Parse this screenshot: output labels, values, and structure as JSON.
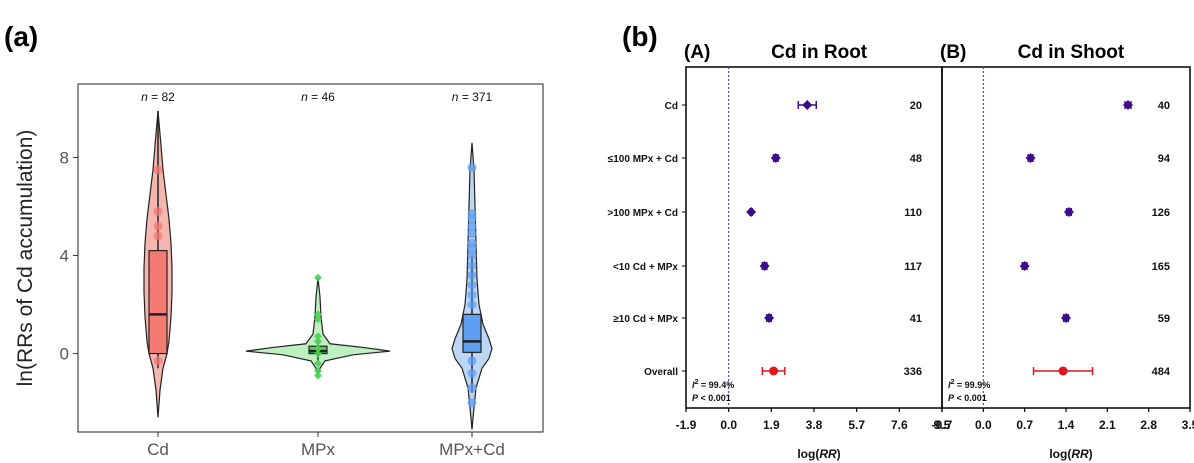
{
  "panel_labels": {
    "a": "(a)",
    "b": "(b)"
  },
  "chart_data": [
    {
      "type": "violin-box",
      "ylabel": "ln(RRs of Cd accumulation)",
      "xlabel": "",
      "categories": [
        "Cd",
        "MPx",
        "MPx+Cd"
      ],
      "n_labels": [
        {
          "prefix": "n",
          "value": "= 82"
        },
        {
          "prefix": "n",
          "value": "= 46"
        },
        {
          "prefix": "n",
          "value": "= 371"
        }
      ],
      "ylim": [
        -3.2,
        11
      ],
      "yticks": [
        "0",
        "4",
        "8"
      ],
      "ytick_values": [
        0,
        4,
        8
      ],
      "grid": false,
      "colors": [
        "#f47a72",
        "#4ccf55",
        "#5f9ff2"
      ],
      "violin_fill": [
        "#f4a9a2",
        "#b3ecb5",
        "#b0cff4"
      ],
      "groups": [
        {
          "name": "Cd",
          "box": {
            "q1": 0.0,
            "median": 1.6,
            "q3": 4.2,
            "whisker_low": -0.6,
            "whisker_high": 9.9
          },
          "violin_min": -2.6,
          "violin_max": 9.9,
          "points": [
            7.5,
            5.8,
            5.2,
            4.8,
            4.0,
            3.0,
            2.0,
            1.0,
            0.2,
            -0.3
          ]
        },
        {
          "name": "MPx",
          "box": {
            "q1": 0.0,
            "median": 0.1,
            "q3": 0.3,
            "whisker_low": -0.3,
            "whisker_high": 0.5
          },
          "violin_min": -0.9,
          "violin_max": 3.1,
          "points": [
            3.1,
            1.6,
            1.4,
            0.7,
            0.5,
            0.2,
            0.0,
            -0.4,
            -0.7,
            -0.9
          ]
        },
        {
          "name": "MPx+Cd",
          "box": {
            "q1": 0.05,
            "median": 0.5,
            "q3": 1.6,
            "whisker_low": -1.6,
            "whisker_high": 4.0
          },
          "violin_min": -3.1,
          "violin_max": 8.6,
          "points": [
            7.6,
            5.7,
            5.5,
            5.2,
            4.9,
            4.5,
            4.3,
            4.0,
            3.6,
            3.2,
            2.8,
            2.4,
            2.0,
            -0.3,
            -0.8,
            -1.4,
            -2.0
          ]
        }
      ]
    },
    {
      "type": "forest",
      "title": "Cd in Root",
      "panel": "(A)",
      "xlabel": "log(RR)",
      "xticks": [
        "-1.9",
        "0.0",
        "1.9",
        "3.8",
        "5.7",
        "7.6",
        "9.5"
      ],
      "xtick_values": [
        -1.9,
        0.0,
        1.9,
        3.8,
        5.7,
        7.6,
        9.5
      ],
      "xlim": [
        -1.9,
        9.5
      ],
      "reference_line": 0,
      "categories": [
        "Cd",
        "≤100 MPx + Cd",
        ">100 MPx + Cd",
        "<10 Cd + MPx",
        "≥10 Cd + MPx",
        "Overall"
      ],
      "estimates": [
        3.5,
        2.1,
        1.0,
        1.6,
        1.8,
        2.0
      ],
      "ci_low": [
        3.1,
        2.0,
        0.95,
        1.5,
        1.7,
        1.5
      ],
      "ci_high": [
        3.9,
        2.2,
        1.05,
        1.7,
        1.9,
        2.5
      ],
      "n": [
        "20",
        "48",
        "110",
        "117",
        "41",
        "336"
      ],
      "colors": [
        "#3d0a8c",
        "#3d0a8c",
        "#3d0a8c",
        "#3d0a8c",
        "#3d0a8c",
        "#e0161c"
      ],
      "stats": {
        "i2": "= 99.4%",
        "p": "< 0.001"
      }
    },
    {
      "type": "forest",
      "title": "Cd in Shoot",
      "panel": "(B)",
      "xlabel": "log(RR)",
      "xticks": [
        "-0.7",
        "0.0",
        "0.7",
        "1.4",
        "2.1",
        "2.8",
        "3.5"
      ],
      "xtick_values": [
        -0.7,
        0.0,
        0.7,
        1.4,
        2.1,
        2.8,
        3.5
      ],
      "xlim": [
        -0.7,
        3.5
      ],
      "reference_line": 0,
      "categories": [
        "Cd",
        "≤100 MPx + Cd",
        ">100 MPx + Cd",
        "<10 Cd + MPx",
        "≥10 Cd + MPx",
        "Overall"
      ],
      "estimates": [
        2.45,
        0.8,
        1.45,
        0.7,
        1.4,
        1.35
      ],
      "ci_low": [
        2.4,
        0.76,
        1.41,
        0.66,
        1.36,
        0.85
      ],
      "ci_high": [
        2.5,
        0.84,
        1.49,
        0.74,
        1.44,
        1.85
      ],
      "n": [
        "40",
        "94",
        "126",
        "165",
        "59",
        "484"
      ],
      "colors": [
        "#3d0a8c",
        "#3d0a8c",
        "#3d0a8c",
        "#3d0a8c",
        "#3d0a8c",
        "#e0161c"
      ],
      "stats": {
        "i2": "= 99.9%",
        "p": "< 0.001"
      }
    }
  ]
}
